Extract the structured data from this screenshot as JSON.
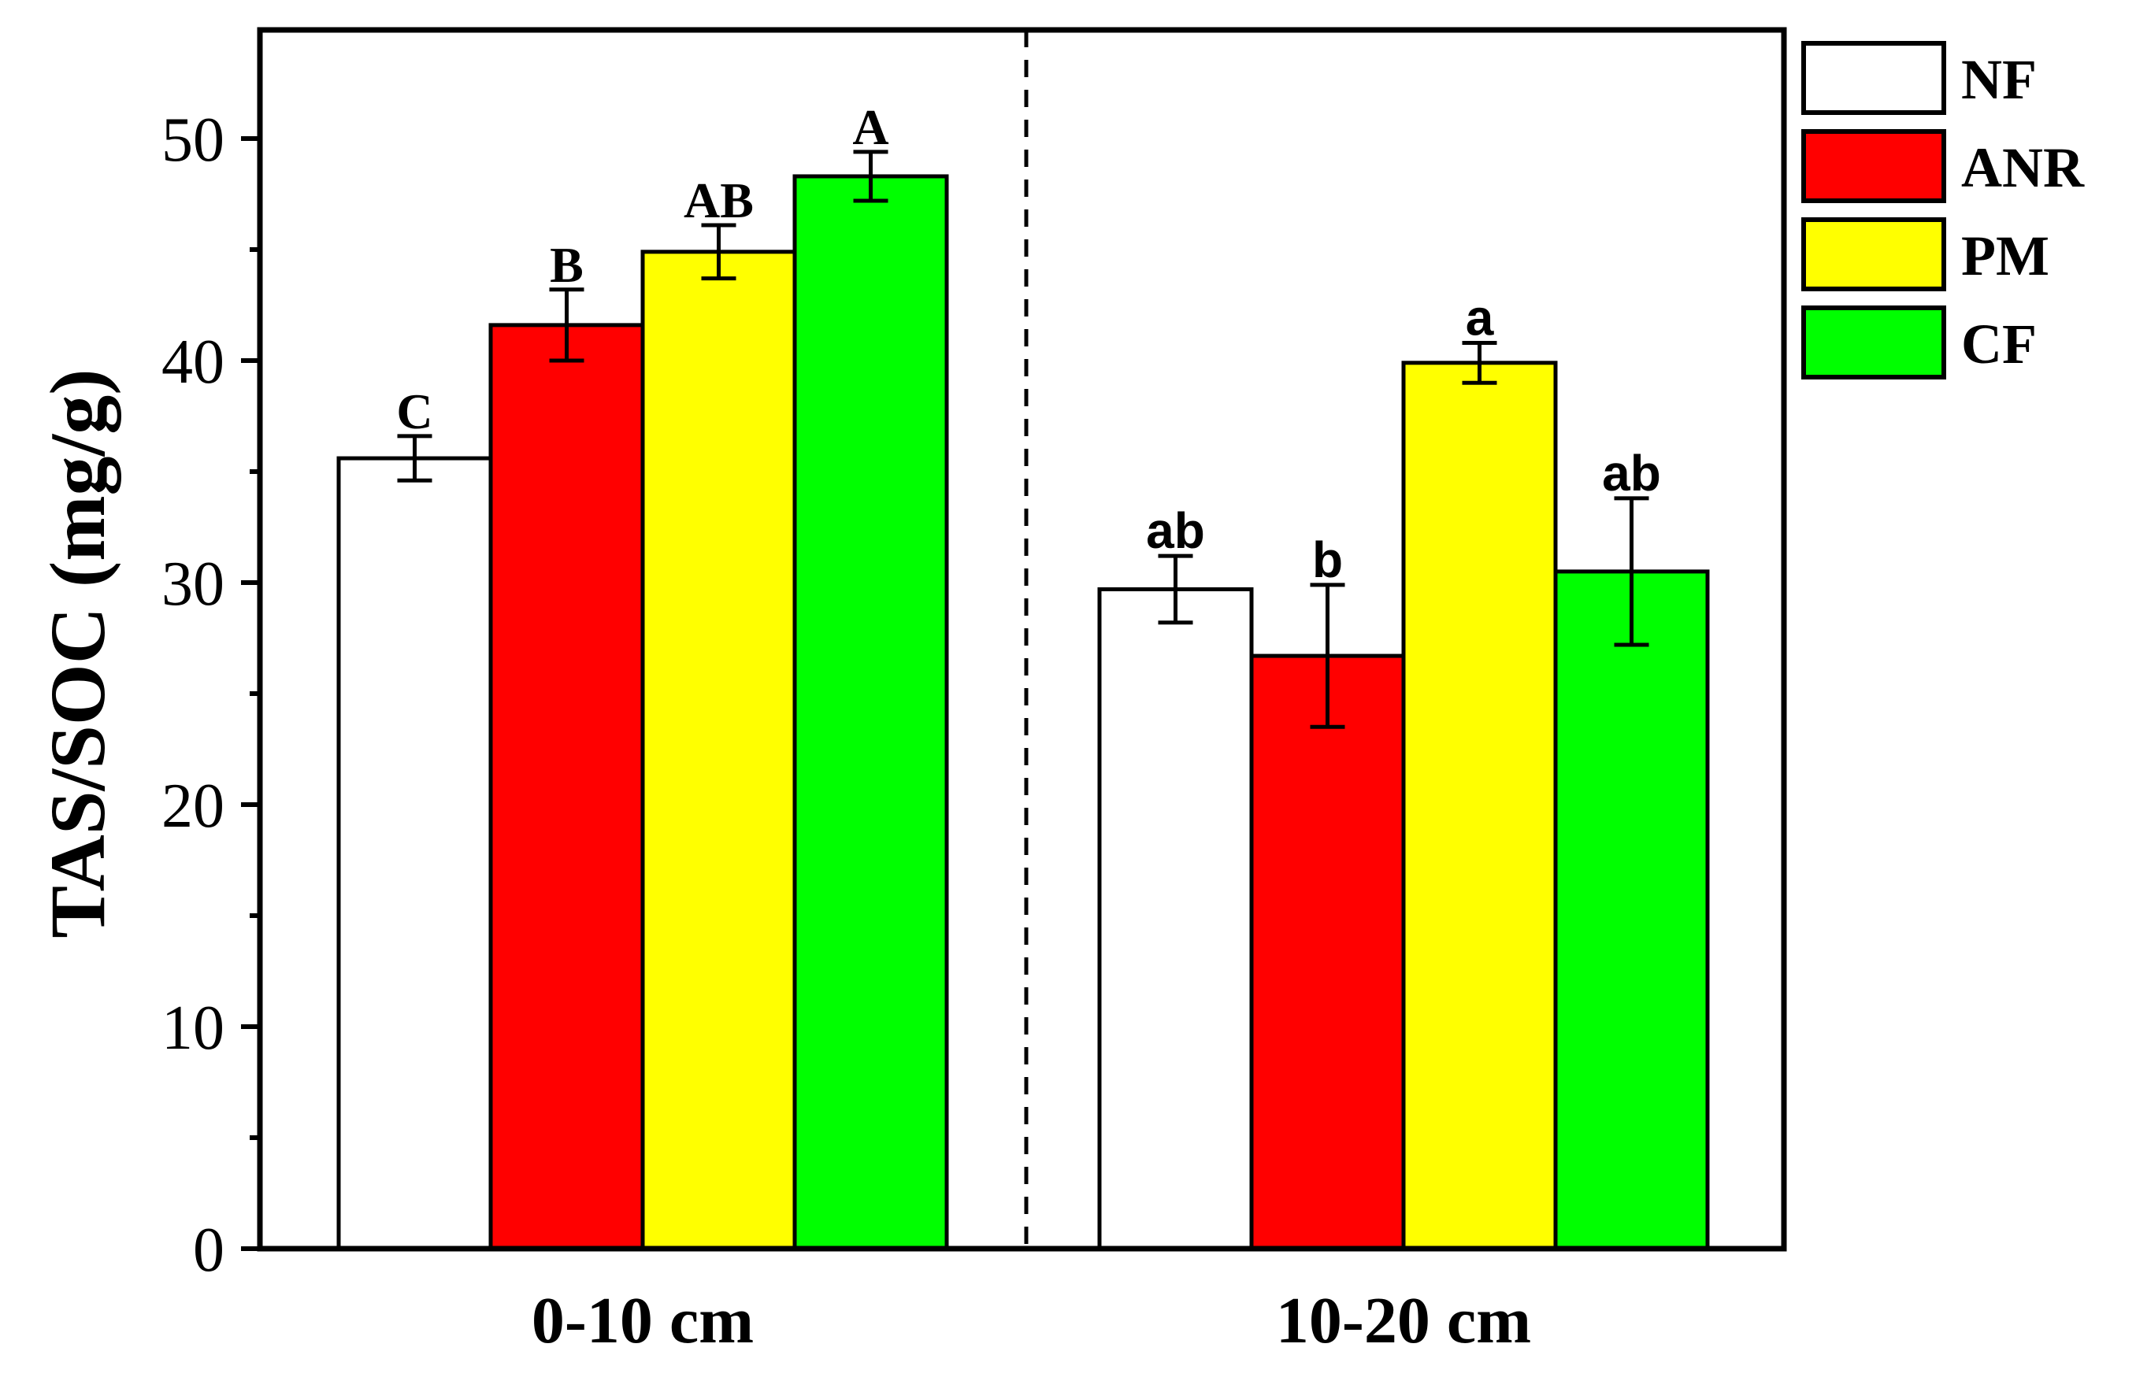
{
  "chart_data": {
    "type": "bar",
    "title": "",
    "xlabel": "",
    "ylabel": "TAS/SOC (mg/g)",
    "ylim": [
      0,
      55
    ],
    "yticks": [
      0,
      10,
      20,
      30,
      40,
      50
    ],
    "grid": false,
    "legend_position": "outside-right",
    "categories": [
      "0-10 cm",
      "10-20 cm"
    ],
    "series": [
      {
        "name": "NF",
        "color": "#ffffff",
        "values": [
          35.6,
          29.7
        ],
        "errors": [
          1.0,
          1.5
        ],
        "significance": [
          "C",
          "ab"
        ]
      },
      {
        "name": "ANR",
        "color": "#ff0000",
        "values": [
          41.6,
          26.7
        ],
        "errors": [
          1.6,
          3.2
        ],
        "significance": [
          "B",
          "b"
        ]
      },
      {
        "name": "PM",
        "color": "#ffff00",
        "values": [
          44.9,
          39.9
        ],
        "errors": [
          1.2,
          0.9
        ],
        "significance": [
          "AB",
          "a"
        ]
      },
      {
        "name": "CF",
        "color": "#00ff00",
        "values": [
          48.3,
          30.5
        ],
        "errors": [
          1.1,
          3.3
        ],
        "significance": [
          "A",
          "ab"
        ]
      }
    ]
  }
}
